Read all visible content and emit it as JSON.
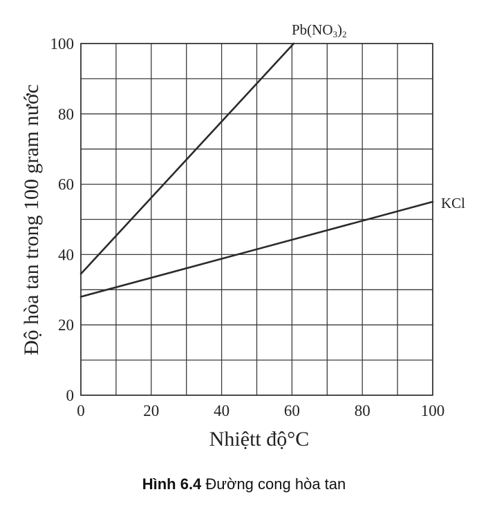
{
  "chart_data": {
    "type": "line",
    "title": "",
    "xlabel": "Nhiệtt độ°C",
    "ylabel": "Độ hòa tan trong 100 gram nước",
    "xlim": [
      0,
      100
    ],
    "ylim": [
      0,
      100
    ],
    "x_ticks": [
      0,
      20,
      40,
      60,
      80,
      100
    ],
    "y_ticks": [
      0,
      20,
      40,
      60,
      80,
      100
    ],
    "x_tick_labels": [
      "0",
      "20",
      "40",
      "60",
      "80",
      "100"
    ],
    "y_tick_labels": [
      "0",
      "20",
      "40",
      "60",
      "80",
      "100"
    ],
    "grid": true,
    "grid_step": 10,
    "series": [
      {
        "name": "Pb(NO",
        "name_sub": "3",
        "name_suffix": ")",
        "name_sub2": "2",
        "color": "#2a2a2a",
        "x": [
          0,
          60.5
        ],
        "y": [
          34.5,
          100
        ]
      },
      {
        "name": "KCl",
        "color": "#2a2a2a",
        "x": [
          0,
          100
        ],
        "y": [
          28,
          55
        ]
      }
    ]
  },
  "caption": {
    "bold": "Hình 6.4",
    "text": " Đường cong hòa tan"
  }
}
